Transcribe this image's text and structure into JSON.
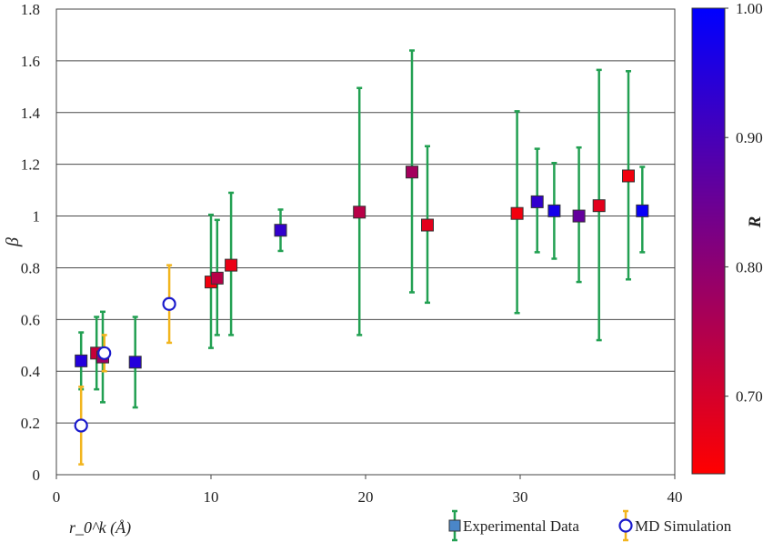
{
  "chart_data": {
    "type": "scatter",
    "title": "",
    "xlabel": "r_0^k (Å)",
    "ylabel": "β",
    "xlim": [
      0,
      40
    ],
    "ylim": [
      0,
      1.8
    ],
    "x_ticks": [
      "0",
      "10",
      "20",
      "30",
      "40"
    ],
    "y_ticks": [
      "0",
      "0.2",
      "0.4",
      "0.6",
      "0.8",
      "1",
      "1.2",
      "1.4",
      "1.6",
      "1.8"
    ],
    "grid": "horizontal",
    "legend_position": "bottom-right",
    "colorbar": {
      "label": "R",
      "min": 0.64,
      "max": 1.0,
      "ticks": [
        "0.70",
        "0.80",
        "0.90",
        "1.00"
      ],
      "tick_values": [
        0.7,
        0.8,
        0.9,
        1.0
      ],
      "low_color": "#ff0000",
      "high_color": "#0000ff"
    },
    "series": [
      {
        "name": "Experimental Data",
        "marker": "square",
        "error_bar_color": "#22a052",
        "points": [
          {
            "x": 1.6,
            "y": 0.44,
            "low": 0.33,
            "high": 0.55,
            "r": 0.95
          },
          {
            "x": 2.6,
            "y": 0.47,
            "low": 0.33,
            "high": 0.61,
            "r": 0.72
          },
          {
            "x": 3.0,
            "y": 0.455,
            "low": 0.28,
            "high": 0.63,
            "r": 0.78
          },
          {
            "x": 5.1,
            "y": 0.435,
            "low": 0.26,
            "high": 0.61,
            "r": 0.95
          },
          {
            "x": 10.0,
            "y": 0.745,
            "low": 0.49,
            "high": 1.005,
            "r": 0.66
          },
          {
            "x": 10.4,
            "y": 0.76,
            "low": 0.54,
            "high": 0.985,
            "r": 0.74
          },
          {
            "x": 11.3,
            "y": 0.81,
            "low": 0.54,
            "high": 1.09,
            "r": 0.67
          },
          {
            "x": 14.5,
            "y": 0.945,
            "low": 0.865,
            "high": 1.025,
            "r": 0.93
          },
          {
            "x": 19.6,
            "y": 1.015,
            "low": 0.54,
            "high": 1.495,
            "r": 0.74
          },
          {
            "x": 23.0,
            "y": 1.17,
            "low": 0.705,
            "high": 1.64,
            "r": 0.77
          },
          {
            "x": 24.0,
            "y": 0.965,
            "low": 0.665,
            "high": 1.27,
            "r": 0.68
          },
          {
            "x": 29.8,
            "y": 1.01,
            "low": 0.625,
            "high": 1.405,
            "r": 0.66
          },
          {
            "x": 31.1,
            "y": 1.055,
            "low": 0.86,
            "high": 1.26,
            "r": 0.93
          },
          {
            "x": 32.2,
            "y": 1.02,
            "low": 0.835,
            "high": 1.205,
            "r": 0.97
          },
          {
            "x": 33.8,
            "y": 1.0,
            "low": 0.745,
            "high": 1.265,
            "r": 0.86
          },
          {
            "x": 35.1,
            "y": 1.04,
            "low": 0.52,
            "high": 1.565,
            "r": 0.68
          },
          {
            "x": 37.0,
            "y": 1.155,
            "low": 0.755,
            "high": 1.56,
            "r": 0.66
          },
          {
            "x": 37.9,
            "y": 1.02,
            "low": 0.86,
            "high": 1.19,
            "r": 0.99
          }
        ]
      },
      {
        "name": "MD Simulation",
        "marker": "open-circle",
        "marker_color": "#1a1acc",
        "error_bar_color": "#f2b51e",
        "points": [
          {
            "x": 1.6,
            "y": 0.19,
            "low": 0.04,
            "high": 0.34
          },
          {
            "x": 3.1,
            "y": 0.47,
            "low": 0.4,
            "high": 0.54
          },
          {
            "x": 7.3,
            "y": 0.66,
            "low": 0.51,
            "high": 0.81
          }
        ]
      }
    ]
  }
}
